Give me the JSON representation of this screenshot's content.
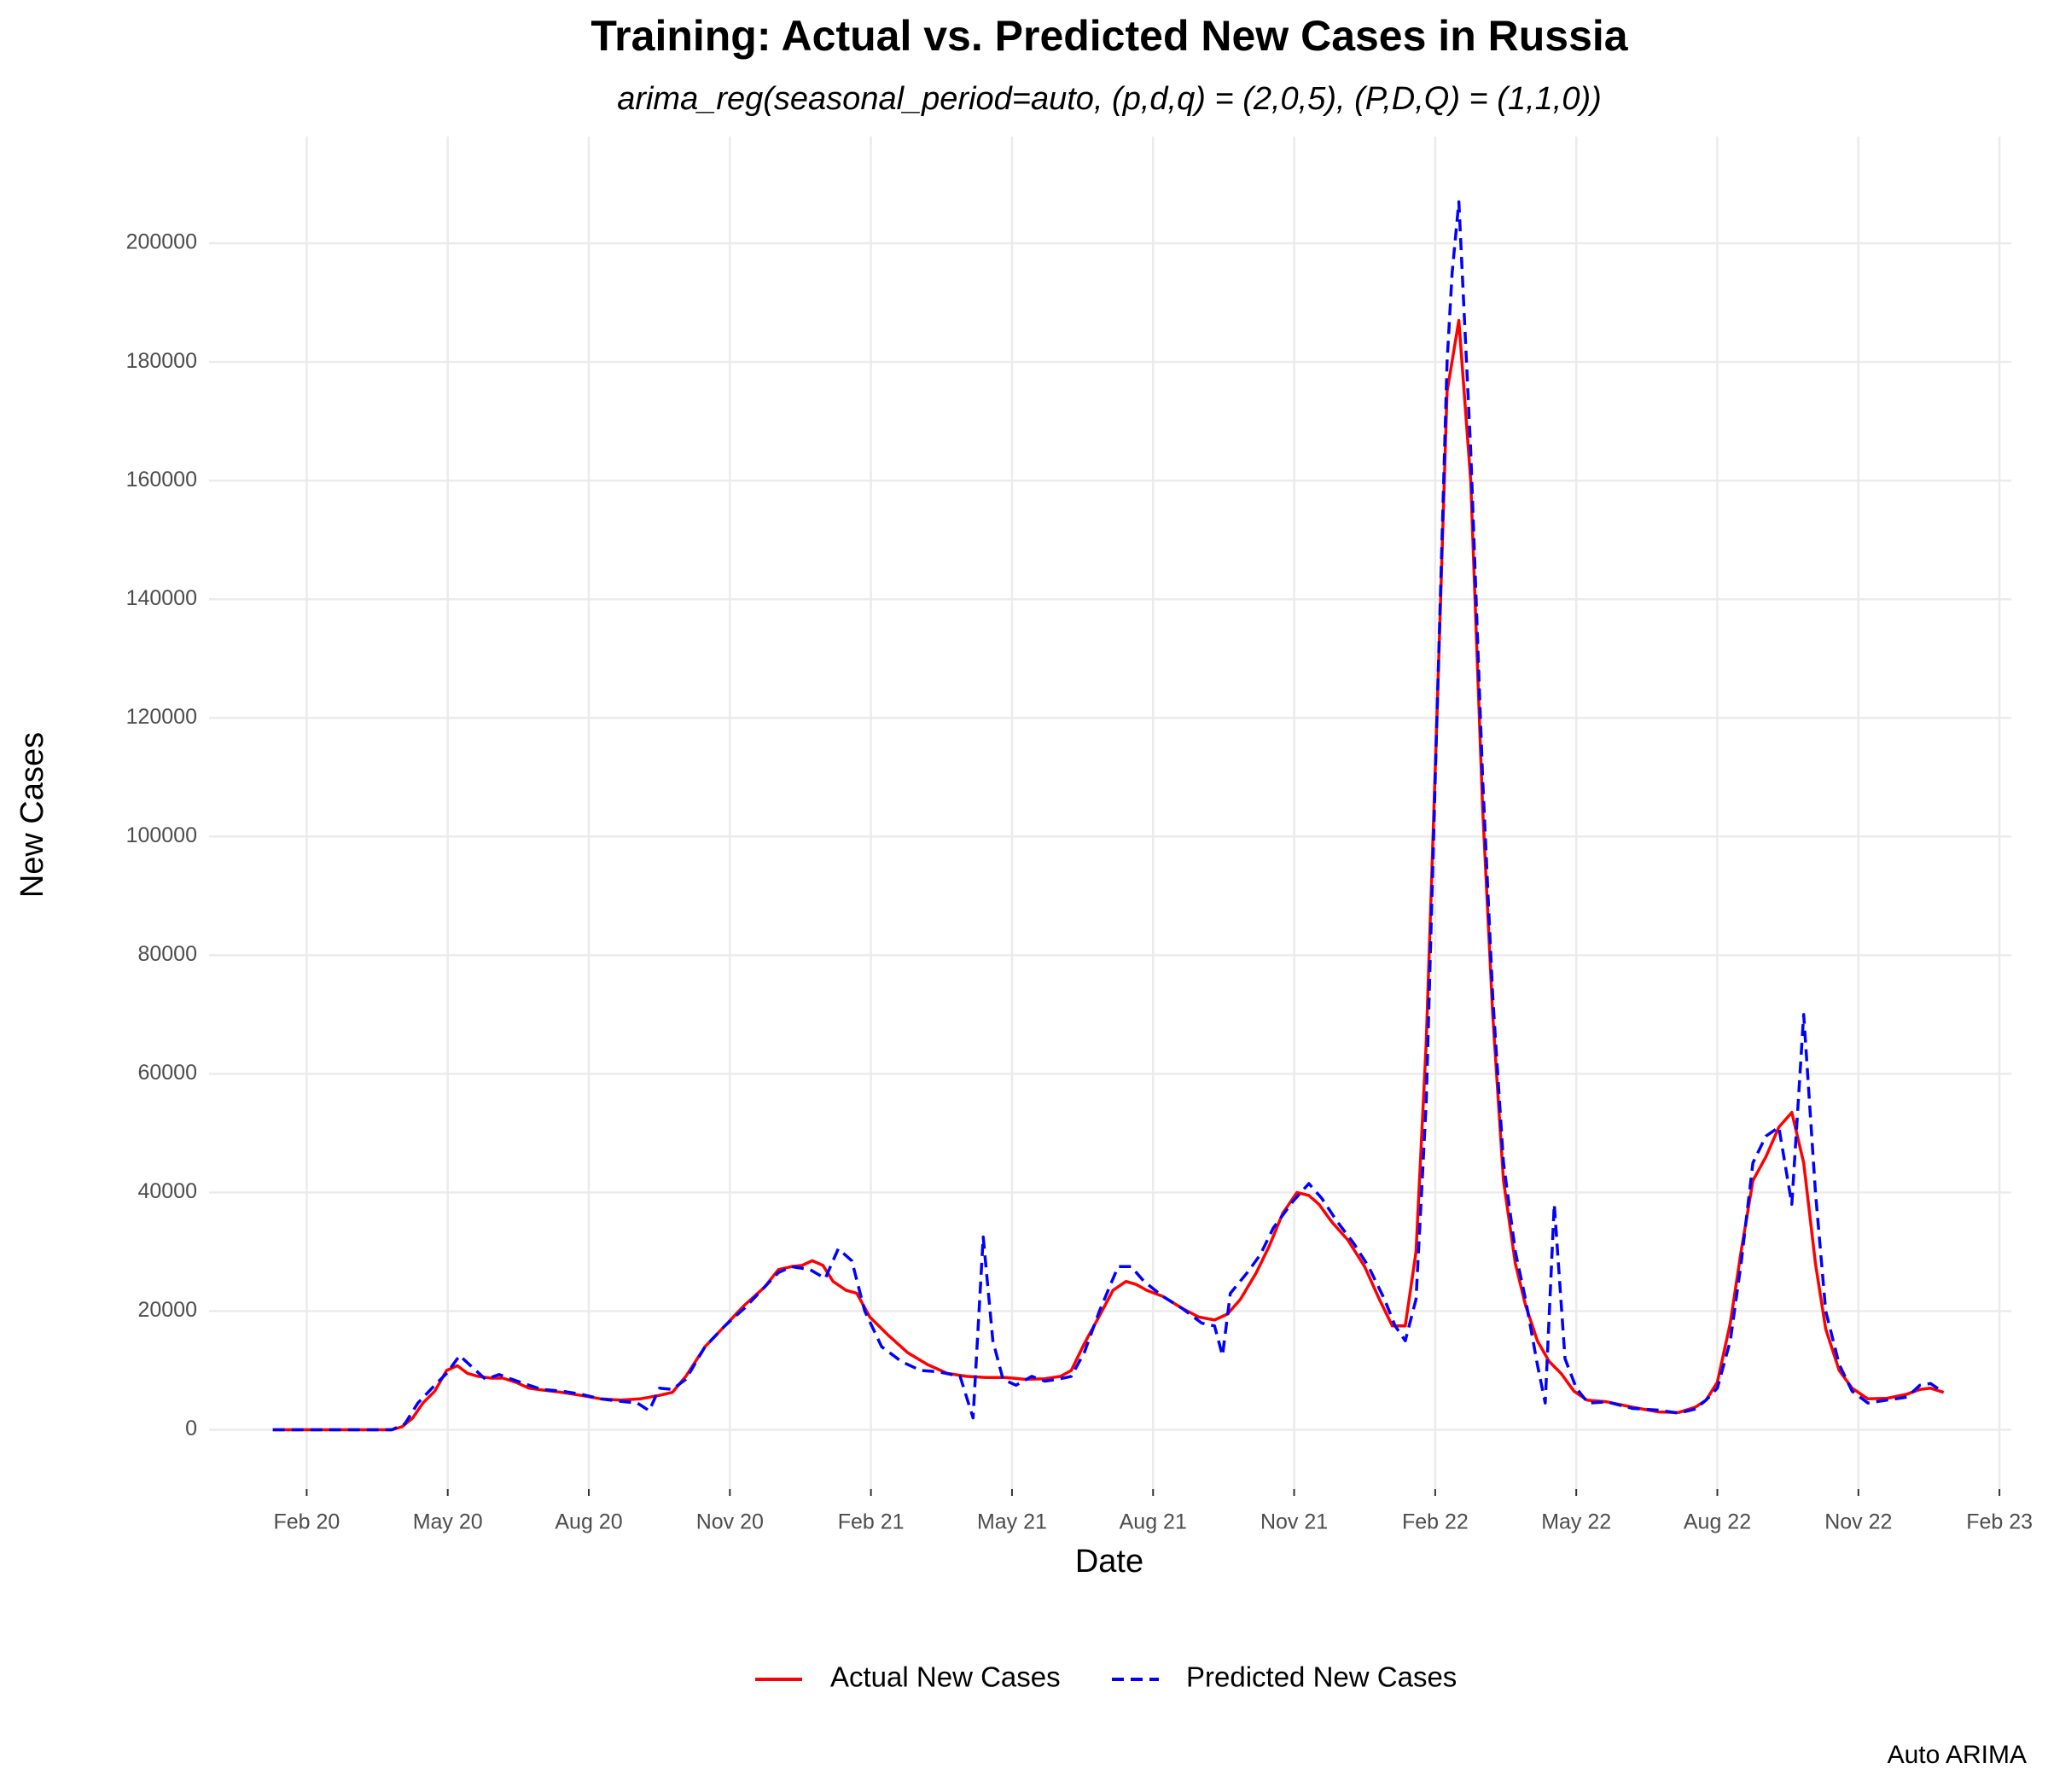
{
  "chart_data": {
    "type": "line",
    "title": "Training: Actual vs. Predicted New Cases in Russia",
    "subtitle": "arima_reg(seasonal_period=auto, (p,d,q) = (2,0,5), (P,D,Q) = (1,1,0))",
    "x_label": "Date",
    "y_label": "New Cases",
    "caption": "Auto ARIMA",
    "grid": true,
    "legend": "bottom",
    "xlim": [
      2019.91,
      2023.104
    ],
    "ylim": [
      -10000,
      218000
    ],
    "xticks": [
      {
        "value": 2020.083,
        "label": "Feb 20"
      },
      {
        "value": 2020.333,
        "label": "May 20"
      },
      {
        "value": 2020.583,
        "label": "Aug 20"
      },
      {
        "value": 2020.833,
        "label": "Nov 20"
      },
      {
        "value": 2021.083,
        "label": "Feb 21"
      },
      {
        "value": 2021.333,
        "label": "May 21"
      },
      {
        "value": 2021.583,
        "label": "Aug 21"
      },
      {
        "value": 2021.833,
        "label": "Nov 21"
      },
      {
        "value": 2022.083,
        "label": "Feb 22"
      },
      {
        "value": 2022.333,
        "label": "May 22"
      },
      {
        "value": 2022.583,
        "label": "Aug 22"
      },
      {
        "value": 2022.833,
        "label": "Nov 22"
      },
      {
        "value": 2023.083,
        "label": "Feb 23"
      }
    ],
    "yticks": [
      0,
      20000,
      40000,
      60000,
      80000,
      100000,
      120000,
      140000,
      160000,
      180000,
      200000
    ],
    "series": [
      {
        "name": "Actual New Cases",
        "color": "#ff0000",
        "dash": false,
        "x": [
          2020.023,
          2020.234,
          2020.252,
          2020.271,
          2020.289,
          2020.31,
          2020.331,
          2020.35,
          2020.368,
          2020.387,
          2020.41,
          2020.431,
          2020.454,
          2020.477,
          2020.5,
          2020.535,
          2020.569,
          2020.604,
          2020.639,
          2020.674,
          2020.708,
          2020.731,
          2020.755,
          2020.789,
          2020.824,
          2020.859,
          2020.894,
          2020.919,
          2020.942,
          2020.961,
          2020.979,
          2020.998,
          2021.016,
          2021.039,
          2021.058,
          2021.081,
          2021.113,
          2021.148,
          2021.183,
          2021.218,
          2021.252,
          2021.287,
          2021.322,
          2021.356,
          2021.391,
          2021.419,
          2021.438,
          2021.461,
          2021.484,
          2021.512,
          2021.535,
          2021.553,
          2021.572,
          2021.6,
          2021.634,
          2021.664,
          2021.692,
          2021.715,
          2021.738,
          2021.766,
          2021.789,
          2021.813,
          2021.838,
          2021.859,
          2021.877,
          2021.9,
          2021.928,
          2021.958,
          2021.984,
          2022.007,
          2022.03,
          2022.049,
          2022.067,
          2022.086,
          2022.104,
          2022.125,
          2022.146,
          2022.167,
          2022.185,
          2022.204,
          2022.225,
          2022.243,
          2022.264,
          2022.285,
          2022.306,
          2022.329,
          2022.352,
          2022.387,
          2022.433,
          2022.479,
          2022.514,
          2022.544,
          2022.563,
          2022.583,
          2022.606,
          2022.625,
          2022.646,
          2022.669,
          2022.692,
          2022.715,
          2022.736,
          2022.757,
          2022.775,
          2022.799,
          2022.822,
          2022.85,
          2022.884,
          2022.919,
          2022.942,
          2022.961,
          2022.984
        ],
        "values": [
          0,
          0,
          500,
          2000,
          4500,
          6500,
          10000,
          10800,
          9500,
          9000,
          8700,
          8700,
          8000,
          7000,
          6700,
          6300,
          5800,
          5200,
          5000,
          5200,
          5800,
          6300,
          9000,
          14000,
          17500,
          21000,
          24000,
          27000,
          27500,
          27700,
          28500,
          27700,
          25000,
          23500,
          23000,
          19000,
          16000,
          13000,
          11000,
          9500,
          9000,
          8800,
          8800,
          8500,
          8600,
          9000,
          10000,
          14500,
          18500,
          23500,
          25000,
          24500,
          23500,
          22500,
          20500,
          19000,
          18500,
          19500,
          22000,
          26500,
          31000,
          36500,
          40000,
          39500,
          38000,
          35000,
          32000,
          27500,
          22000,
          17500,
          17500,
          30000,
          65000,
          120000,
          175000,
          187000,
          160000,
          105000,
          70000,
          42000,
          28000,
          21000,
          15000,
          11500,
          9500,
          6500,
          5000,
          4700,
          3800,
          3000,
          2900,
          3800,
          5000,
          8000,
          18000,
          30000,
          42000,
          46000,
          51000,
          53500,
          45000,
          28000,
          17000,
          10000,
          7000,
          5200,
          5300,
          6000,
          6800,
          7000,
          6300
        ]
      },
      {
        "name": "Predicted New Cases",
        "color": "#0000ff",
        "dash": true,
        "x": [
          2020.023,
          2020.234,
          2020.257,
          2020.28,
          2020.31,
          2020.331,
          2020.354,
          2020.377,
          2020.4,
          2020.424,
          2020.447,
          2020.477,
          2020.5,
          2020.535,
          2020.569,
          2020.604,
          2020.639,
          2020.669,
          2020.69,
          2020.708,
          2020.731,
          2020.755,
          2020.789,
          2020.824,
          2020.859,
          2020.894,
          2020.919,
          2020.942,
          2020.975,
          2021.002,
          2021.025,
          2021.049,
          2021.072,
          2021.102,
          2021.137,
          2021.171,
          2021.201,
          2021.241,
          2021.264,
          2021.282,
          2021.299,
          2021.317,
          2021.34,
          2021.368,
          2021.391,
          2021.414,
          2021.438,
          2021.461,
          2021.488,
          2021.521,
          2021.544,
          2021.567,
          2021.6,
          2021.634,
          2021.669,
          2021.692,
          2021.706,
          2021.72,
          2021.75,
          2021.773,
          2021.796,
          2021.831,
          2021.859,
          2021.882,
          2021.91,
          2021.938,
          2021.965,
          2021.993,
          2022.012,
          2022.03,
          2022.049,
          2022.067,
          2022.086,
          2022.104,
          2022.113,
          2022.125,
          2022.146,
          2022.167,
          2022.185,
          2022.204,
          2022.225,
          2022.243,
          2022.264,
          2022.278,
          2022.294,
          2022.313,
          2022.333,
          2022.354,
          2022.387,
          2022.433,
          2022.479,
          2022.514,
          2022.544,
          2022.563,
          2022.583,
          2022.606,
          2022.625,
          2022.646,
          2022.669,
          2022.692,
          2022.715,
          2022.736,
          2022.757,
          2022.775,
          2022.799,
          2022.822,
          2022.85,
          2022.884,
          2022.919,
          2022.942,
          2022.961,
          2022.984
        ],
        "values": [
          0,
          0,
          1000,
          4500,
          7500,
          9500,
          12500,
          10500,
          8500,
          9300,
          8500,
          7500,
          6800,
          6500,
          6000,
          5200,
          4800,
          4500,
          3200,
          7000,
          6800,
          8500,
          14000,
          17500,
          20500,
          24000,
          26500,
          27500,
          27000,
          25500,
          30500,
          28500,
          20000,
          14000,
          11500,
          10000,
          9800,
          9000,
          2000,
          32500,
          15000,
          8500,
          7500,
          9000,
          8200,
          8500,
          9000,
          13000,
          20000,
          27500,
          27500,
          25000,
          22500,
          20500,
          18000,
          17500,
          12500,
          23000,
          26500,
          29500,
          34000,
          38500,
          41500,
          39000,
          35000,
          31500,
          27500,
          22000,
          17500,
          15000,
          22000,
          55000,
          120000,
          180000,
          195000,
          207000,
          165000,
          110000,
          73000,
          45000,
          30000,
          22000,
          11000,
          4500,
          38000,
          12000,
          7000,
          4500,
          4700,
          3600,
          3300,
          2800,
          3500,
          5000,
          7000,
          15000,
          28000,
          45000,
          49500,
          51000,
          38000,
          70000,
          40000,
          20000,
          11000,
          6500,
          4500,
          5000,
          5500,
          7500,
          7800,
          6300
        ]
      }
    ]
  }
}
